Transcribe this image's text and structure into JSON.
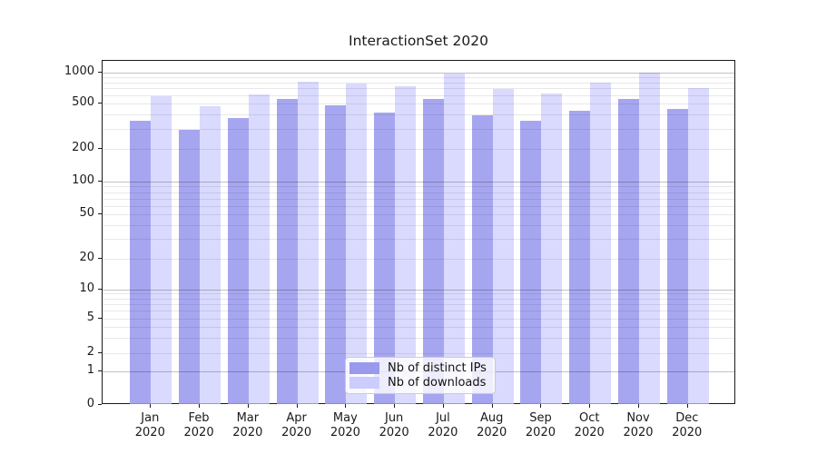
{
  "header": {
    "title": "InteractionSet 2020"
  },
  "chart_data": {
    "type": "bar",
    "title": "InteractionSet 2020",
    "xlabel": "",
    "ylabel": "",
    "categories": [
      "Jan",
      "Feb",
      "Mar",
      "Apr",
      "May",
      "Jun",
      "Jul",
      "Aug",
      "Sep",
      "Oct",
      "Nov",
      "Dec"
    ],
    "category_year": "2020",
    "series": [
      {
        "name": "Nb of distinct IPs",
        "color": "#9999ee",
        "values": [
          350,
          295,
          375,
          555,
          480,
          415,
          555,
          395,
          355,
          430,
          550,
          450
        ]
      },
      {
        "name": "Nb of downloads",
        "color": "#ccccff",
        "values": [
          585,
          475,
          610,
          815,
          790,
          730,
          975,
          690,
          630,
          805,
          1000,
          710
        ]
      }
    ],
    "y_axis": {
      "scale": "symlog",
      "tick_values": [
        0,
        1,
        2,
        5,
        10,
        20,
        50,
        100,
        200,
        500,
        1000
      ],
      "tick_labels": [
        "0",
        "1",
        "2",
        "5",
        "10",
        "20",
        "50",
        "100",
        "200",
        "500",
        "1000"
      ],
      "ylim": [
        0,
        1280
      ]
    },
    "grid": true,
    "legend_position": "lower center"
  },
  "legend": {
    "items": [
      {
        "label": "Nb of distinct IPs",
        "color": "#9999ee"
      },
      {
        "label": "Nb of downloads",
        "color": "#ccccff"
      }
    ]
  }
}
